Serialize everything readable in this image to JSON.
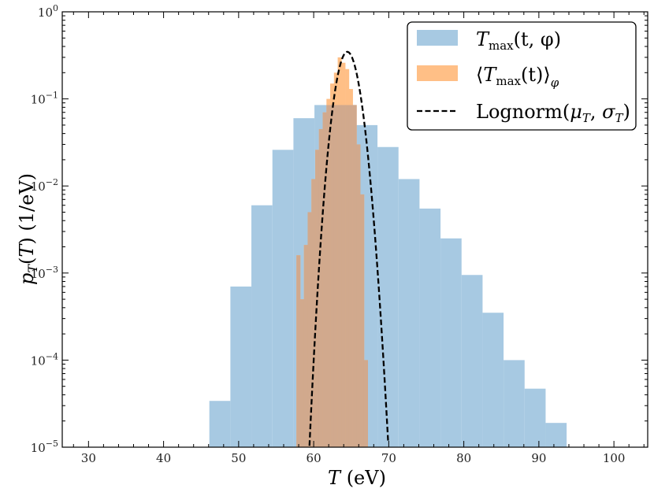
{
  "chart_data": {
    "type": "bar",
    "xlabel": "T (eV)",
    "ylabel": "p_T(T) (1/eV)",
    "xlim": [
      26.5,
      104.5
    ],
    "ylim_log10": [
      -5,
      0
    ],
    "yscale": "log",
    "grid": false,
    "legend_position": "top-right",
    "x_ticks": [
      30,
      40,
      50,
      60,
      70,
      80,
      90,
      100
    ],
    "x_tick_labels": [
      "30",
      "40",
      "50",
      "60",
      "70",
      "80",
      "90",
      "100"
    ],
    "y_ticks_exp": [
      -5,
      -4,
      -3,
      -2,
      -1,
      0
    ],
    "y_tick_bases": [
      "10",
      "10",
      "10",
      "10",
      "10",
      "10"
    ],
    "y_tick_exps": [
      "−5",
      "−4",
      "−3",
      "−2",
      "−1",
      "0"
    ],
    "colors": {
      "tmax": "#a7c9e2",
      "avg": "#ffbf86",
      "lognorm": "#000000",
      "overlap": "#d1a98d"
    },
    "series": [
      {
        "name": "T_max(t, φ)",
        "kind": "histogram",
        "bin_width": 2.8,
        "bins": [
          {
            "x0": 46.1,
            "y": 3.4e-05
          },
          {
            "x0": 48.9,
            "y": 0.0007
          },
          {
            "x0": 51.7,
            "y": 0.006
          },
          {
            "x0": 54.5,
            "y": 0.026
          },
          {
            "x0": 57.3,
            "y": 0.06
          },
          {
            "x0": 60.1,
            "y": 0.085
          },
          {
            "x0": 62.9,
            "y": 0.085
          },
          {
            "x0": 65.7,
            "y": 0.05
          },
          {
            "x0": 68.5,
            "y": 0.028
          },
          {
            "x0": 71.3,
            "y": 0.012
          },
          {
            "x0": 74.1,
            "y": 0.0055
          },
          {
            "x0": 76.9,
            "y": 0.0025
          },
          {
            "x0": 79.7,
            "y": 0.00095
          },
          {
            "x0": 82.5,
            "y": 0.00035
          },
          {
            "x0": 85.3,
            "y": 0.0001
          },
          {
            "x0": 88.1,
            "y": 4.7e-05
          },
          {
            "x0": 90.9,
            "y": 1.9e-05
          }
        ]
      },
      {
        "name": "⟨T_max(t)⟩_φ",
        "kind": "histogram",
        "bin_width": 0.5,
        "bins": [
          {
            "x0": 57.7,
            "y": 0.0016
          },
          {
            "x0": 58.2,
            "y": 0.0005
          },
          {
            "x0": 58.7,
            "y": 0.0021
          },
          {
            "x0": 59.2,
            "y": 0.005
          },
          {
            "x0": 59.7,
            "y": 0.012
          },
          {
            "x0": 60.2,
            "y": 0.026
          },
          {
            "x0": 60.7,
            "y": 0.045
          },
          {
            "x0": 61.2,
            "y": 0.07
          },
          {
            "x0": 61.7,
            "y": 0.1
          },
          {
            "x0": 62.2,
            "y": 0.15
          },
          {
            "x0": 62.7,
            "y": 0.2
          },
          {
            "x0": 63.2,
            "y": 0.3
          },
          {
            "x0": 63.7,
            "y": 0.26
          },
          {
            "x0": 64.2,
            "y": 0.22
          },
          {
            "x0": 64.7,
            "y": 0.13
          },
          {
            "x0": 65.2,
            "y": 0.085
          },
          {
            "x0": 65.7,
            "y": 0.03
          },
          {
            "x0": 66.2,
            "y": 0.008
          },
          {
            "x0": 66.7,
            "y": 0.0001
          }
        ]
      },
      {
        "name": "Lognorm(μ_T, σ_T)",
        "kind": "line",
        "style": "dashed",
        "mu_T": 64.5,
        "sigma_T": 1.15
      }
    ]
  },
  "legend": {
    "tmax_main": "T",
    "tmax_sub": "max",
    "tmax_args": "(t, φ)",
    "avg_open": "⟨",
    "avg_main": "T",
    "avg_sub": "max",
    "avg_args": "(t)",
    "avg_close": "⟩",
    "avg_outer_sub": "φ",
    "lognorm_text": "Lognorm(",
    "lognorm_mu": "μ",
    "lognorm_sub1": "T",
    "lognorm_sep": ", ",
    "lognorm_sigma": "σ",
    "lognorm_sub2": "T",
    "lognorm_close": ")"
  }
}
